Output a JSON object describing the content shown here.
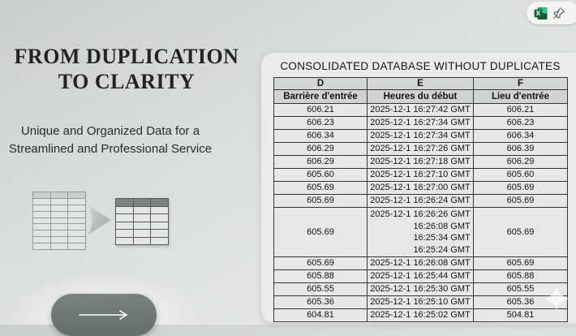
{
  "slide": {
    "title_line1": "FROM DUPLICATION",
    "title_line2": "TO CLARITY",
    "subtitle": "Unique and Organized Data for a Streamlined and Professional Service"
  },
  "database": {
    "title": "CONSOLIDATED DATABASE WITHOUT DUPLICATES",
    "column_letters": [
      "D",
      "E",
      "F"
    ],
    "headers": [
      "Barrière d'entrée",
      "Heures du début",
      "Lieu d'entrée"
    ],
    "rows": [
      [
        "606.21",
        "2025-12-1 16:27:42 GMT",
        "606.21"
      ],
      [
        "606.23",
        "2025-12-1 16:27:34 GMT",
        "606.23"
      ],
      [
        "606.34",
        "2025-12-1 16:27:34 GMT",
        "606.34"
      ],
      [
        "606.29",
        "2025-12-1 16:27:26 GMT",
        "606.39"
      ],
      [
        "606.29",
        "2025-12-1 16:27:18 GMT",
        "606.29"
      ],
      [
        "605.60",
        "2025-12-1 16:27:10 GMT",
        "605.60"
      ],
      [
        "605.69",
        "2025-12-1 16:27:00 GMT",
        "605.69"
      ],
      [
        "605.69",
        "2025-12-1 16:26:24 GMT",
        "605.69"
      ],
      [
        "605.69",
        [
          "2025-12-1 16:26:26 GMT",
          "16:26:08 GMT",
          "16:25:34 GMT",
          "16:25:24 GMT"
        ],
        "605.69"
      ],
      [
        "605.69",
        "2025-12-1 16:26:08 GMT",
        "605.69"
      ],
      [
        "605.88",
        "2025-12-1 16:25:44 GMT",
        "605.88"
      ],
      [
        "605.55",
        "2025-12-1 16:25:30 GMT",
        "605.55"
      ],
      [
        "605.36",
        "2025-12-1 16:25:10 GMT",
        "605.36"
      ],
      [
        "604.81",
        "2025-12-1 16:25:02 GMT",
        "504.81"
      ]
    ]
  },
  "icons": {
    "excel": "excel-icon",
    "pin": "pin-icon",
    "next_arrow": "arrow-right-icon",
    "transform_arrow": "arrow-right-icon",
    "sparkle": "sparkle-icon"
  },
  "colors": {
    "excel_green": "#21a366",
    "excel_dark_green": "#17603f",
    "button_gray": "#6e7874",
    "table_border": "#343636",
    "card_bg": "#eaece9"
  }
}
